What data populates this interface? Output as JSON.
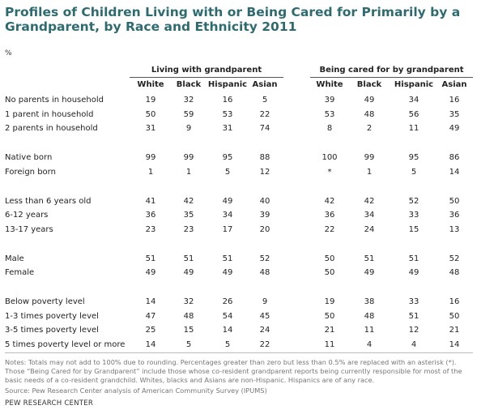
{
  "chart_data": {
    "type": "table",
    "title": "Profiles of Children Living with or Being Cared for Primarily by a Grandparent, by Race and Ethnicity 2011",
    "unit": "%",
    "groups": [
      {
        "name": "Living with grandparent",
        "columns": [
          "White",
          "Black",
          "Hispanic",
          "Asian"
        ]
      },
      {
        "name": "Being cared for by grandparent",
        "columns": [
          "White",
          "Black",
          "Hispanic",
          "Asian"
        ]
      }
    ],
    "sections": [
      {
        "rows": [
          {
            "label": "No parents in household",
            "values": [
              "19",
              "32",
              "16",
              "5",
              "39",
              "49",
              "34",
              "16"
            ]
          },
          {
            "label": "1 parent in household",
            "values": [
              "50",
              "59",
              "53",
              "22",
              "53",
              "48",
              "56",
              "35"
            ]
          },
          {
            "label": "2 parents in household",
            "values": [
              "31",
              "9",
              "31",
              "74",
              "8",
              "2",
              "11",
              "49"
            ]
          }
        ]
      },
      {
        "rows": [
          {
            "label": "Native born",
            "values": [
              "99",
              "99",
              "95",
              "88",
              "100",
              "99",
              "95",
              "86"
            ]
          },
          {
            "label": "Foreign born",
            "values": [
              "1",
              "1",
              "5",
              "12",
              "*",
              "1",
              "5",
              "14"
            ]
          }
        ]
      },
      {
        "rows": [
          {
            "label": "Less than 6 years old",
            "values": [
              "41",
              "42",
              "49",
              "40",
              "42",
              "42",
              "52",
              "50"
            ]
          },
          {
            "label": "6-12 years",
            "values": [
              "36",
              "35",
              "34",
              "39",
              "36",
              "34",
              "33",
              "36"
            ]
          },
          {
            "label": "13-17 years",
            "values": [
              "23",
              "23",
              "17",
              "20",
              "22",
              "24",
              "15",
              "13"
            ]
          }
        ]
      },
      {
        "rows": [
          {
            "label": "Male",
            "values": [
              "51",
              "51",
              "51",
              "52",
              "50",
              "51",
              "51",
              "52"
            ]
          },
          {
            "label": "Female",
            "values": [
              "49",
              "49",
              "49",
              "48",
              "50",
              "49",
              "49",
              "48"
            ]
          }
        ]
      },
      {
        "rows": [
          {
            "label": "Below poverty level",
            "values": [
              "14",
              "32",
              "26",
              "9",
              "19",
              "38",
              "33",
              "16"
            ]
          },
          {
            "label": "1-3 times poverty level",
            "values": [
              "47",
              "48",
              "54",
              "45",
              "50",
              "48",
              "51",
              "50"
            ]
          },
          {
            "label": "3-5 times poverty level",
            "values": [
              "25",
              "15",
              "14",
              "24",
              "21",
              "11",
              "12",
              "21"
            ]
          },
          {
            "label": "5 times poverty level or more",
            "values": [
              "14",
              "5",
              "5",
              "22",
              "11",
              "4",
              "4",
              "14"
            ]
          }
        ]
      }
    ]
  },
  "notes": "Notes: Totals may not add to 100% due to rounding. Percentages greater than zero but less than 0.5% are replaced with an asterisk (*). Those “Being Cared for by Grandparent” include those whose co-resident grandparent reports being currently responsible for most of the basic needs of a co-resident grandchild. Whites, blacks and Asians are non-Hispanic. Hispanics are of any race.",
  "source": "Source: Pew Research Center analysis of American Community Survey (IPUMS)",
  "org": "PEW RESEARCH CENTER",
  "colors": {
    "title": "#2e6b70",
    "text": "#222222",
    "notes": "#777777"
  }
}
